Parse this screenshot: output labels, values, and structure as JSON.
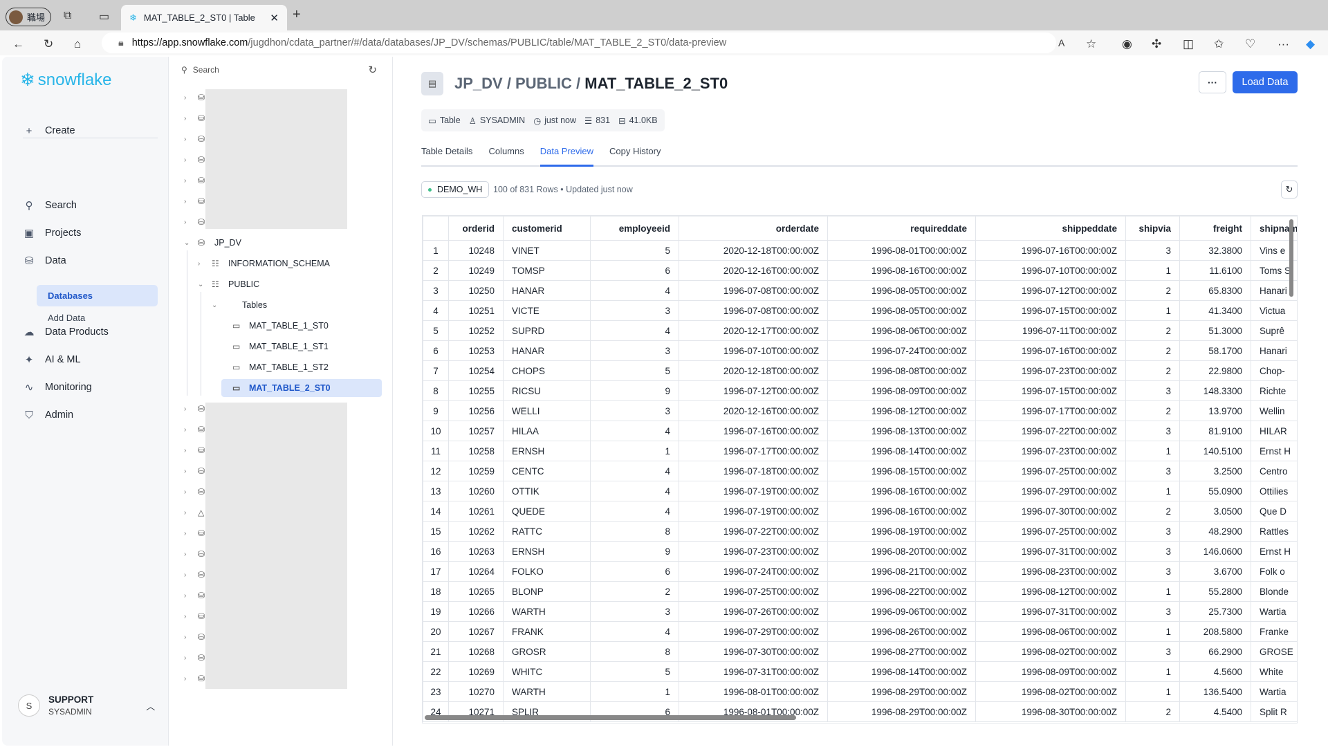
{
  "browser": {
    "profile_label": "職場",
    "tab_title": "MAT_TABLE_2_ST0 | Table",
    "url_host": "https://app.snowflake.com",
    "url_path": "/jugdhon/cdata_partner/#/data/databases/JP_DV/schemas/PUBLIC/table/MAT_TABLE_2_ST0/data-preview"
  },
  "brand": {
    "name": "snowflake",
    "color": "#29b5e8",
    "accent": "#2e6bea"
  },
  "sidebar": {
    "create": "Create",
    "items": [
      {
        "label": "Search",
        "icon": "search-icon"
      },
      {
        "label": "Projects",
        "icon": "projects-icon"
      },
      {
        "label": "Data",
        "icon": "database-icon"
      },
      {
        "label": "Data Products",
        "icon": "cloud-icon"
      },
      {
        "label": "AI & ML",
        "icon": "sparkle-icon"
      },
      {
        "label": "Monitoring",
        "icon": "activity-icon"
      },
      {
        "label": "Admin",
        "icon": "shield-icon"
      }
    ],
    "sub_items": [
      {
        "label": "Databases",
        "selected": true
      },
      {
        "label": "Add Data",
        "selected": false
      }
    ],
    "user": {
      "initial": "S",
      "name": "SUPPORT",
      "role": "SYSADMIN"
    }
  },
  "tree": {
    "search_placeholder": "Search",
    "db": "JP_DV",
    "schemas": [
      "INFORMATION_SCHEMA",
      "PUBLIC"
    ],
    "tables_label": "Tables",
    "tables": [
      "MAT_TABLE_1_ST0",
      "MAT_TABLE_1_ST1",
      "MAT_TABLE_1_ST2",
      "MAT_TABLE_2_ST0"
    ],
    "selected": "MAT_TABLE_2_ST0"
  },
  "header": {
    "path": "JP_DV / PUBLIC / ",
    "name": "MAT_TABLE_2_ST0",
    "more": "···",
    "load": "Load Data"
  },
  "meta": {
    "type": "Table",
    "owner": "SYSADMIN",
    "updated": "just now",
    "rows": "831",
    "size": "41.0KB"
  },
  "tabs": [
    {
      "label": "Table Details",
      "active": false
    },
    {
      "label": "Columns",
      "active": false
    },
    {
      "label": "Data Preview",
      "active": true
    },
    {
      "label": "Copy History",
      "active": false
    }
  ],
  "preview": {
    "warehouse": "DEMO_WH",
    "info": "100 of 831 Rows • Updated just now"
  },
  "columns": [
    "",
    "orderid",
    "customerid",
    "employeeid",
    "orderdate",
    "requireddate",
    "shippeddate",
    "shipvia",
    "freight",
    "shipnam"
  ],
  "rows": [
    [
      "1",
      "10248",
      "VINET",
      "5",
      "2020-12-18T00:00:00Z",
      "1996-08-01T00:00:00Z",
      "1996-07-16T00:00:00Z",
      "3",
      "32.3800",
      "Vins e"
    ],
    [
      "2",
      "10249",
      "TOMSP",
      "6",
      "2020-12-16T00:00:00Z",
      "1996-08-16T00:00:00Z",
      "1996-07-10T00:00:00Z",
      "1",
      "11.6100",
      "Toms S"
    ],
    [
      "3",
      "10250",
      "HANAR",
      "4",
      "1996-07-08T00:00:00Z",
      "1996-08-05T00:00:00Z",
      "1996-07-12T00:00:00Z",
      "2",
      "65.8300",
      "Hanari"
    ],
    [
      "4",
      "10251",
      "VICTE",
      "3",
      "1996-07-08T00:00:00Z",
      "1996-08-05T00:00:00Z",
      "1996-07-15T00:00:00Z",
      "1",
      "41.3400",
      "Victua"
    ],
    [
      "5",
      "10252",
      "SUPRD",
      "4",
      "2020-12-17T00:00:00Z",
      "1996-08-06T00:00:00Z",
      "1996-07-11T00:00:00Z",
      "2",
      "51.3000",
      "Suprê"
    ],
    [
      "6",
      "10253",
      "HANAR",
      "3",
      "1996-07-10T00:00:00Z",
      "1996-07-24T00:00:00Z",
      "1996-07-16T00:00:00Z",
      "2",
      "58.1700",
      "Hanari"
    ],
    [
      "7",
      "10254",
      "CHOPS",
      "5",
      "2020-12-18T00:00:00Z",
      "1996-08-08T00:00:00Z",
      "1996-07-23T00:00:00Z",
      "2",
      "22.9800",
      "Chop-"
    ],
    [
      "8",
      "10255",
      "RICSU",
      "9",
      "1996-07-12T00:00:00Z",
      "1996-08-09T00:00:00Z",
      "1996-07-15T00:00:00Z",
      "3",
      "148.3300",
      "Richte"
    ],
    [
      "9",
      "10256",
      "WELLI",
      "3",
      "2020-12-16T00:00:00Z",
      "1996-08-12T00:00:00Z",
      "1996-07-17T00:00:00Z",
      "2",
      "13.9700",
      "Wellin"
    ],
    [
      "10",
      "10257",
      "HILAA",
      "4",
      "1996-07-16T00:00:00Z",
      "1996-08-13T00:00:00Z",
      "1996-07-22T00:00:00Z",
      "3",
      "81.9100",
      "HILAR"
    ],
    [
      "11",
      "10258",
      "ERNSH",
      "1",
      "1996-07-17T00:00:00Z",
      "1996-08-14T00:00:00Z",
      "1996-07-23T00:00:00Z",
      "1",
      "140.5100",
      "Ernst H"
    ],
    [
      "12",
      "10259",
      "CENTC",
      "4",
      "1996-07-18T00:00:00Z",
      "1996-08-15T00:00:00Z",
      "1996-07-25T00:00:00Z",
      "3",
      "3.2500",
      "Centro"
    ],
    [
      "13",
      "10260",
      "OTTIK",
      "4",
      "1996-07-19T00:00:00Z",
      "1996-08-16T00:00:00Z",
      "1996-07-29T00:00:00Z",
      "1",
      "55.0900",
      "Ottilies"
    ],
    [
      "14",
      "10261",
      "QUEDE",
      "4",
      "1996-07-19T00:00:00Z",
      "1996-08-16T00:00:00Z",
      "1996-07-30T00:00:00Z",
      "2",
      "3.0500",
      "Que D"
    ],
    [
      "15",
      "10262",
      "RATTC",
      "8",
      "1996-07-22T00:00:00Z",
      "1996-08-19T00:00:00Z",
      "1996-07-25T00:00:00Z",
      "3",
      "48.2900",
      "Rattles"
    ],
    [
      "16",
      "10263",
      "ERNSH",
      "9",
      "1996-07-23T00:00:00Z",
      "1996-08-20T00:00:00Z",
      "1996-07-31T00:00:00Z",
      "3",
      "146.0600",
      "Ernst H"
    ],
    [
      "17",
      "10264",
      "FOLKO",
      "6",
      "1996-07-24T00:00:00Z",
      "1996-08-21T00:00:00Z",
      "1996-08-23T00:00:00Z",
      "3",
      "3.6700",
      "Folk o"
    ],
    [
      "18",
      "10265",
      "BLONP",
      "2",
      "1996-07-25T00:00:00Z",
      "1996-08-22T00:00:00Z",
      "1996-08-12T00:00:00Z",
      "1",
      "55.2800",
      "Blonde"
    ],
    [
      "19",
      "10266",
      "WARTH",
      "3",
      "1996-07-26T00:00:00Z",
      "1996-09-06T00:00:00Z",
      "1996-07-31T00:00:00Z",
      "3",
      "25.7300",
      "Wartia"
    ],
    [
      "20",
      "10267",
      "FRANK",
      "4",
      "1996-07-29T00:00:00Z",
      "1996-08-26T00:00:00Z",
      "1996-08-06T00:00:00Z",
      "1",
      "208.5800",
      "Franke"
    ],
    [
      "21",
      "10268",
      "GROSR",
      "8",
      "1996-07-30T00:00:00Z",
      "1996-08-27T00:00:00Z",
      "1996-08-02T00:00:00Z",
      "3",
      "66.2900",
      "GROSE"
    ],
    [
      "22",
      "10269",
      "WHITC",
      "5",
      "1996-07-31T00:00:00Z",
      "1996-08-14T00:00:00Z",
      "1996-08-09T00:00:00Z",
      "1",
      "4.5600",
      "White"
    ],
    [
      "23",
      "10270",
      "WARTH",
      "1",
      "1996-08-01T00:00:00Z",
      "1996-08-29T00:00:00Z",
      "1996-08-02T00:00:00Z",
      "1",
      "136.5400",
      "Wartia"
    ],
    [
      "24",
      "10271",
      "SPLIR",
      "6",
      "1996-08-01T00:00:00Z",
      "1996-08-29T00:00:00Z",
      "1996-08-30T00:00:00Z",
      "2",
      "4.5400",
      "Split R"
    ]
  ]
}
